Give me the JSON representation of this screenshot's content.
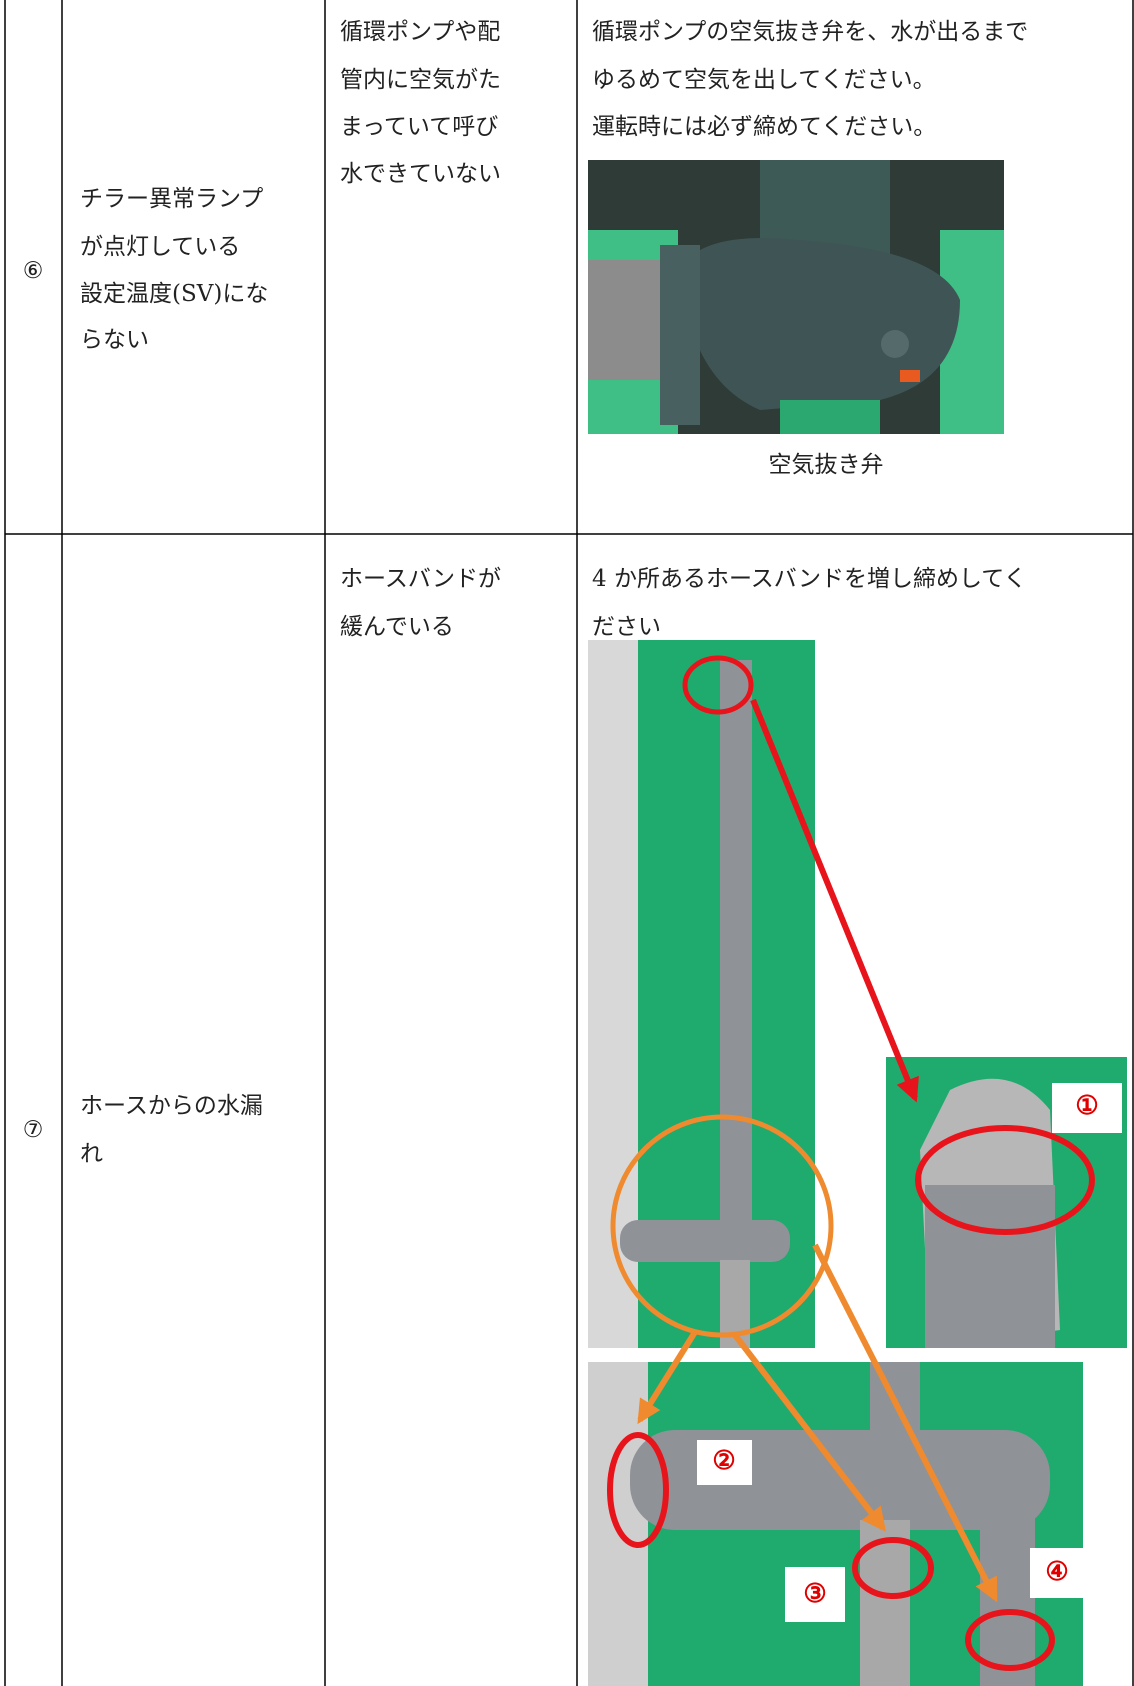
{
  "table": {
    "rows": [
      {
        "number": "⑥",
        "symptom": [
          "チラー異常ランプ",
          "が点灯している",
          "設定温度(SV)にな",
          "らない"
        ],
        "cause": [
          "循環ポンプや配",
          "管内に空気がた",
          "まっていて呼び",
          "水できていない"
        ],
        "remedy": [
          "循環ポンプの空気抜き弁を、水が出るまで",
          "ゆるめて空気を出してください。",
          "運転時には必ず締めてください。"
        ],
        "caption": "空気抜き弁"
      },
      {
        "number": "⑦",
        "symptom": [
          "ホースからの水漏",
          "れ"
        ],
        "cause": [
          "ホースバンドが",
          "緩んでいる"
        ],
        "remedy": [
          "4 か所あるホースバンドを増し締めしてく",
          "ださい"
        ],
        "labels": [
          "①",
          "②",
          "③",
          "④"
        ]
      }
    ]
  }
}
